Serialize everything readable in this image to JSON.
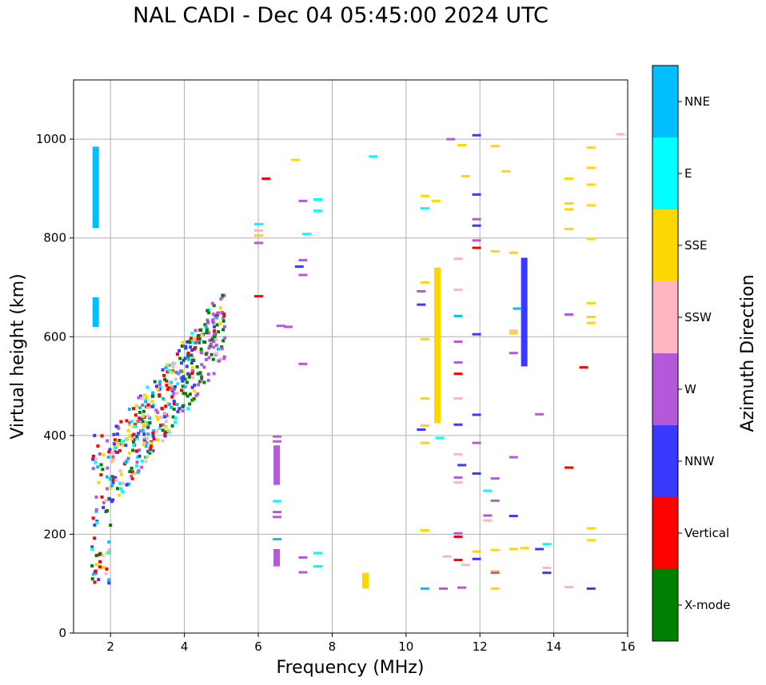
{
  "chart_data": {
    "type": "scatter",
    "title": "NAL CADI - Dec 04 05:45:00 2024 UTC",
    "xlabel": "Frequency (MHz)",
    "ylabel": "Virtual height (km)",
    "xlim": [
      1,
      16
    ],
    "ylim": [
      0,
      1120
    ],
    "xticks": [
      2,
      4,
      6,
      8,
      10,
      12,
      14,
      16
    ],
    "yticks": [
      0,
      200,
      400,
      600,
      800,
      1000
    ],
    "grid": true,
    "colorbar": {
      "label": "Azimuth Direction",
      "categories": [
        {
          "name": "X-mode",
          "color": "#008000"
        },
        {
          "name": "Vertical",
          "color": "#ff0000"
        },
        {
          "name": "NNW",
          "color": "#3a3aff"
        },
        {
          "name": "W",
          "color": "#b45ad8"
        },
        {
          "name": "SSW",
          "color": "#ffb6c1"
        },
        {
          "name": "SSE",
          "color": "#ffd700"
        },
        {
          "name": "E",
          "color": "#00ffff"
        },
        {
          "name": "NNE",
          "color": "#00bfff"
        }
      ]
    },
    "columns": [
      {
        "cat": "SSE",
        "x": 10.85,
        "y0": 425,
        "y1": 740
      },
      {
        "cat": "NNW",
        "x": 13.2,
        "y0": 540,
        "y1": 760
      },
      {
        "cat": "W",
        "x": 6.5,
        "y0": 300,
        "y1": 380
      },
      {
        "cat": "NNE",
        "x": 1.6,
        "y0": 620,
        "y1": 680
      },
      {
        "cat": "NNE",
        "x": 1.6,
        "y0": 820,
        "y1": 985
      },
      {
        "cat": "SSE",
        "x": 8.9,
        "y0": 90,
        "y1": 122
      },
      {
        "cat": "W",
        "x": 6.5,
        "y0": 135,
        "y1": 170
      }
    ],
    "points": [
      {
        "cat": "SSE",
        "x": 10.5,
        "y": 885
      },
      {
        "cat": "SSE",
        "x": 10.8,
        "y": 875
      },
      {
        "cat": "E",
        "x": 10.5,
        "y": 860
      },
      {
        "cat": "SSE",
        "x": 10.5,
        "y": 710
      },
      {
        "cat": "W",
        "x": 10.4,
        "y": 692
      },
      {
        "cat": "NNW",
        "x": 10.4,
        "y": 665
      },
      {
        "cat": "SSE",
        "x": 10.5,
        "y": 595
      },
      {
        "cat": "SSE",
        "x": 10.5,
        "y": 475
      },
      {
        "cat": "SSE",
        "x": 10.5,
        "y": 420
      },
      {
        "cat": "NNW",
        "x": 10.4,
        "y": 412
      },
      {
        "cat": "E",
        "x": 10.9,
        "y": 395
      },
      {
        "cat": "SSE",
        "x": 10.5,
        "y": 385
      },
      {
        "cat": "SSE",
        "x": 10.5,
        "y": 208
      },
      {
        "cat": "NNE",
        "x": 10.5,
        "y": 90
      },
      {
        "cat": "W",
        "x": 11.2,
        "y": 1000
      },
      {
        "cat": "SSE",
        "x": 11.5,
        "y": 988
      },
      {
        "cat": "NNW",
        "x": 11.9,
        "y": 1008
      },
      {
        "cat": "SSE",
        "x": 11.6,
        "y": 925
      },
      {
        "cat": "NNW",
        "x": 11.9,
        "y": 888
      },
      {
        "cat": "W",
        "x": 11.9,
        "y": 838
      },
      {
        "cat": "NNW",
        "x": 11.9,
        "y": 825
      },
      {
        "cat": "W",
        "x": 11.9,
        "y": 795
      },
      {
        "cat": "Vertical",
        "x": 11.9,
        "y": 780
      },
      {
        "cat": "SSW",
        "x": 11.4,
        "y": 758
      },
      {
        "cat": "SSW",
        "x": 11.4,
        "y": 695
      },
      {
        "cat": "NNE",
        "x": 11.4,
        "y": 642
      },
      {
        "cat": "NNW",
        "x": 11.9,
        "y": 605
      },
      {
        "cat": "W",
        "x": 11.4,
        "y": 590
      },
      {
        "cat": "W",
        "x": 11.4,
        "y": 548
      },
      {
        "cat": "Vertical",
        "x": 11.4,
        "y": 525
      },
      {
        "cat": "SSW",
        "x": 11.4,
        "y": 475
      },
      {
        "cat": "NNW",
        "x": 11.9,
        "y": 442
      },
      {
        "cat": "NNW",
        "x": 11.4,
        "y": 422
      },
      {
        "cat": "W",
        "x": 11.9,
        "y": 385
      },
      {
        "cat": "SSW",
        "x": 11.4,
        "y": 362
      },
      {
        "cat": "NNW",
        "x": 11.5,
        "y": 340
      },
      {
        "cat": "NNW",
        "x": 11.9,
        "y": 323
      },
      {
        "cat": "W",
        "x": 11.4,
        "y": 315
      },
      {
        "cat": "SSW",
        "x": 11.4,
        "y": 305
      },
      {
        "cat": "E",
        "x": 12.2,
        "y": 288
      },
      {
        "cat": "W",
        "x": 12.4,
        "y": 313
      },
      {
        "cat": "W",
        "x": 12.4,
        "y": 268
      },
      {
        "cat": "W",
        "x": 12.2,
        "y": 238
      },
      {
        "cat": "SSW",
        "x": 12.2,
        "y": 228
      },
      {
        "cat": "W",
        "x": 11.4,
        "y": 202
      },
      {
        "cat": "Vertical",
        "x": 11.4,
        "y": 195
      },
      {
        "cat": "SSE",
        "x": 11.9,
        "y": 165
      },
      {
        "cat": "NNW",
        "x": 11.9,
        "y": 150
      },
      {
        "cat": "SSW",
        "x": 11.1,
        "y": 155
      },
      {
        "cat": "Vertical",
        "x": 11.4,
        "y": 148
      },
      {
        "cat": "SSW",
        "x": 11.6,
        "y": 138
      },
      {
        "cat": "W",
        "x": 11.0,
        "y": 90
      },
      {
        "cat": "W",
        "x": 11.5,
        "y": 92
      },
      {
        "cat": "SSE",
        "x": 12.4,
        "y": 168
      },
      {
        "cat": "SSE",
        "x": 12.4,
        "y": 125
      },
      {
        "cat": "W",
        "x": 12.4,
        "y": 122
      },
      {
        "cat": "SSE",
        "x": 12.4,
        "y": 90
      },
      {
        "cat": "SSE",
        "x": 12.4,
        "y": 986
      },
      {
        "cat": "SSE",
        "x": 12.7,
        "y": 935
      },
      {
        "cat": "SSE",
        "x": 12.4,
        "y": 773
      },
      {
        "cat": "SSE",
        "x": 12.9,
        "y": 770
      },
      {
        "cat": "NNE",
        "x": 13.0,
        "y": 657
      },
      {
        "cat": "SSW",
        "x": 12.9,
        "y": 612
      },
      {
        "cat": "SSE",
        "x": 12.9,
        "y": 607
      },
      {
        "cat": "W",
        "x": 12.9,
        "y": 567
      },
      {
        "cat": "W",
        "x": 13.6,
        "y": 443
      },
      {
        "cat": "W",
        "x": 12.9,
        "y": 356
      },
      {
        "cat": "NNW",
        "x": 12.9,
        "y": 237
      },
      {
        "cat": "SSE",
        "x": 12.9,
        "y": 170
      },
      {
        "cat": "SSE",
        "x": 13.2,
        "y": 172
      },
      {
        "cat": "NNW",
        "x": 13.6,
        "y": 170
      },
      {
        "cat": "E",
        "x": 13.8,
        "y": 180
      },
      {
        "cat": "SSW",
        "x": 13.8,
        "y": 132
      },
      {
        "cat": "NNW",
        "x": 13.8,
        "y": 122
      },
      {
        "cat": "SSE",
        "x": 14.4,
        "y": 920
      },
      {
        "cat": "SSE",
        "x": 14.4,
        "y": 870
      },
      {
        "cat": "SSE",
        "x": 14.4,
        "y": 858
      },
      {
        "cat": "SSE",
        "x": 14.4,
        "y": 818
      },
      {
        "cat": "W",
        "x": 14.4,
        "y": 645
      },
      {
        "cat": "Vertical",
        "x": 14.8,
        "y": 538
      },
      {
        "cat": "Vertical",
        "x": 14.4,
        "y": 335
      },
      {
        "cat": "SSW",
        "x": 14.4,
        "y": 93
      },
      {
        "cat": "SSE",
        "x": 15.0,
        "y": 983
      },
      {
        "cat": "SSE",
        "x": 15.0,
        "y": 942
      },
      {
        "cat": "SSE",
        "x": 15.0,
        "y": 908
      },
      {
        "cat": "SSE",
        "x": 15.0,
        "y": 866
      },
      {
        "cat": "SSE",
        "x": 15.0,
        "y": 798
      },
      {
        "cat": "SSE",
        "x": 15.0,
        "y": 668
      },
      {
        "cat": "SSE",
        "x": 15.0,
        "y": 640
      },
      {
        "cat": "SSE",
        "x": 15.0,
        "y": 628
      },
      {
        "cat": "SSE",
        "x": 15.0,
        "y": 212
      },
      {
        "cat": "SSE",
        "x": 15.0,
        "y": 188
      },
      {
        "cat": "NNW",
        "x": 15.0,
        "y": 90
      },
      {
        "cat": "SSW",
        "x": 15.8,
        "y": 1010
      },
      {
        "cat": "E",
        "x": 9.1,
        "y": 965
      },
      {
        "cat": "SSE",
        "x": 7.0,
        "y": 958
      },
      {
        "cat": "Vertical",
        "x": 6.2,
        "y": 920
      },
      {
        "cat": "W",
        "x": 7.2,
        "y": 875
      },
      {
        "cat": "E",
        "x": 7.6,
        "y": 878
      },
      {
        "cat": "E",
        "x": 7.6,
        "y": 855
      },
      {
        "cat": "E",
        "x": 6.0,
        "y": 828
      },
      {
        "cat": "SSW",
        "x": 6.0,
        "y": 815
      },
      {
        "cat": "SSE",
        "x": 6.0,
        "y": 805
      },
      {
        "cat": "W",
        "x": 6.0,
        "y": 790
      },
      {
        "cat": "E",
        "x": 7.3,
        "y": 808
      },
      {
        "cat": "W",
        "x": 7.2,
        "y": 755
      },
      {
        "cat": "NNW",
        "x": 7.1,
        "y": 742
      },
      {
        "cat": "W",
        "x": 7.2,
        "y": 725
      },
      {
        "cat": "Vertical",
        "x": 6.0,
        "y": 682
      },
      {
        "cat": "W",
        "x": 6.6,
        "y": 622
      },
      {
        "cat": "W",
        "x": 6.8,
        "y": 620
      },
      {
        "cat": "W",
        "x": 7.2,
        "y": 545
      },
      {
        "cat": "E",
        "x": 6.5,
        "y": 267
      },
      {
        "cat": "W",
        "x": 6.5,
        "y": 245
      },
      {
        "cat": "W",
        "x": 6.5,
        "y": 235
      },
      {
        "cat": "NNE",
        "x": 6.5,
        "y": 190
      },
      {
        "cat": "W",
        "x": 7.2,
        "y": 153
      },
      {
        "cat": "E",
        "x": 7.6,
        "y": 162
      },
      {
        "cat": "E",
        "x": 7.6,
        "y": 135
      },
      {
        "cat": "W",
        "x": 7.2,
        "y": 123
      },
      {
        "cat": "W",
        "x": 6.5,
        "y": 398
      },
      {
        "cat": "W",
        "x": 6.5,
        "y": 388
      }
    ]
  }
}
